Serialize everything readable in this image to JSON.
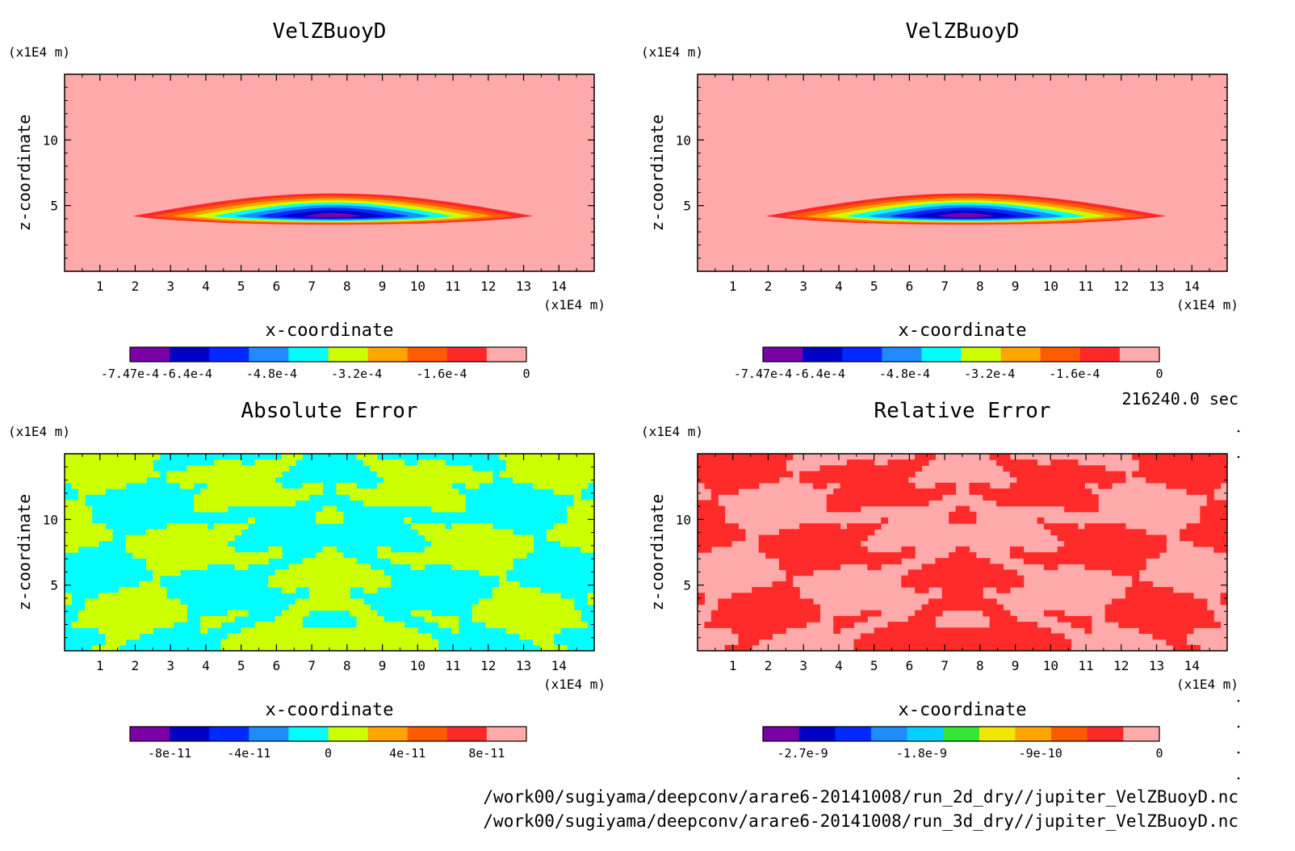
{
  "figure": {
    "time_label": "216240.0 sec",
    "files": [
      "/work00/sugiyama/deepconv/arare6-20141008/run_2d_dry//jupiter_VelZBuoyD.nc",
      "/work00/sugiyama/deepconv/arare6-20141008/run_3d_dry//jupiter_VelZBuoyD.nc"
    ],
    "colors": {
      "background_fill": "#ffaaaa",
      "abs_fill_a": "#ccff00",
      "abs_fill_b": "#00ffff",
      "rel_fill_a": "#ff2a2a",
      "rel_fill_b": "#ffaaaa"
    }
  },
  "chart_data": [
    {
      "type": "heatmap",
      "title": "VelZBuoyD",
      "xlabel": "x-coordinate",
      "ylabel": "z-coordinate",
      "x_unit": "(x1E4 m)",
      "y_unit": "(x1E4 m)",
      "xlim": [
        0,
        15
      ],
      "ylim": [
        0,
        15
      ],
      "x_ticks": [
        "1",
        "2",
        "3",
        "4",
        "5",
        "6",
        "7",
        "8",
        "9",
        "10",
        "11",
        "12",
        "13",
        "14"
      ],
      "y_ticks": [
        "5",
        "10"
      ],
      "field": {
        "kind": "blob",
        "center_x": 7.6,
        "center_z": 4.2,
        "min_value": -0.000747
      },
      "colorbar": {
        "colors": [
          "#7a00a8",
          "#0000c8",
          "#0028ff",
          "#1e8cff",
          "#00ffff",
          "#ccff00",
          "#ffa500",
          "#ff5a00",
          "#ff2828",
          "#ffaaaa"
        ],
        "tick_labels": [
          "-7.47e-4",
          "-6.4e-4",
          "-4.8e-4",
          "-3.2e-4",
          "-1.6e-4",
          "0"
        ],
        "tick_values": [
          -0.000747,
          -0.00064,
          -0.00048,
          -0.00032,
          -0.00016,
          0
        ],
        "range": [
          -0.000747,
          0
        ]
      }
    },
    {
      "type": "heatmap",
      "title": "VelZBuoyD",
      "xlabel": "x-coordinate",
      "ylabel": "z-coordinate",
      "x_unit": "(x1E4 m)",
      "y_unit": "(x1E4 m)",
      "xlim": [
        0,
        15
      ],
      "ylim": [
        0,
        15
      ],
      "x_ticks": [
        "1",
        "2",
        "3",
        "4",
        "5",
        "6",
        "7",
        "8",
        "9",
        "10",
        "11",
        "12",
        "13",
        "14"
      ],
      "y_ticks": [
        "5",
        "10"
      ],
      "field": {
        "kind": "blob",
        "center_x": 7.6,
        "center_z": 4.2,
        "min_value": -0.000747
      },
      "colorbar": {
        "colors": [
          "#7a00a8",
          "#0000c8",
          "#0028ff",
          "#1e8cff",
          "#00ffff",
          "#ccff00",
          "#ffa500",
          "#ff5a00",
          "#ff2828",
          "#ffaaaa"
        ],
        "tick_labels": [
          "-7.47e-4",
          "-6.4e-4",
          "-4.8e-4",
          "-3.2e-4",
          "-1.6e-4",
          "0"
        ],
        "tick_values": [
          -0.000747,
          -0.00064,
          -0.00048,
          -0.00032,
          -0.00016,
          0
        ],
        "range": [
          -0.000747,
          0
        ]
      }
    },
    {
      "type": "heatmap",
      "title": "Absolute Error",
      "xlabel": "x-coordinate",
      "ylabel": "z-coordinate",
      "x_unit": "(x1E4 m)",
      "y_unit": "(x1E4 m)",
      "xlim": [
        0,
        15
      ],
      "ylim": [
        0,
        15
      ],
      "x_ticks": [
        "1",
        "2",
        "3",
        "4",
        "5",
        "6",
        "7",
        "8",
        "9",
        "10",
        "11",
        "12",
        "13",
        "14"
      ],
      "y_ticks": [
        "5",
        "10"
      ],
      "field": {
        "kind": "noise",
        "levels": [
          0,
          4e-11
        ]
      },
      "colorbar": {
        "colors": [
          "#7a00a8",
          "#0000c8",
          "#0028ff",
          "#1e8cff",
          "#00ffff",
          "#ccff00",
          "#ffa500",
          "#ff5a00",
          "#ff2828",
          "#ffaaaa"
        ],
        "tick_labels": [
          "-8e-11",
          "-4e-11",
          "0",
          "4e-11",
          "8e-11"
        ],
        "tick_values": [
          -8e-11,
          -4e-11,
          0,
          4e-11,
          8e-11
        ],
        "range": [
          -1e-10,
          1e-10
        ]
      }
    },
    {
      "type": "heatmap",
      "title": "Relative Error",
      "xlabel": "x-coordinate",
      "ylabel": "z-coordinate",
      "x_unit": "(x1E4 m)",
      "y_unit": "(x1E4 m)",
      "xlim": [
        0,
        15
      ],
      "ylim": [
        0,
        15
      ],
      "x_ticks": [
        "1",
        "2",
        "3",
        "4",
        "5",
        "6",
        "7",
        "8",
        "9",
        "10",
        "11",
        "12",
        "13",
        "14"
      ],
      "y_ticks": [
        "5",
        "10"
      ],
      "field": {
        "kind": "noise",
        "levels": [
          -3e-10,
          0
        ]
      },
      "colorbar": {
        "colors": [
          "#7a00a8",
          "#0000c8",
          "#0028ff",
          "#1e8cff",
          "#00d2ff",
          "#32e632",
          "#f0e600",
          "#ffa500",
          "#ff5a00",
          "#ff2828",
          "#ffaaaa"
        ],
        "tick_labels": [
          "-2.7e-9",
          "-1.8e-9",
          "-9e-10",
          "0"
        ],
        "tick_values": [
          -2.7e-09,
          -1.8e-09,
          -9e-10,
          0
        ],
        "range": [
          -3e-09,
          0
        ]
      }
    }
  ]
}
